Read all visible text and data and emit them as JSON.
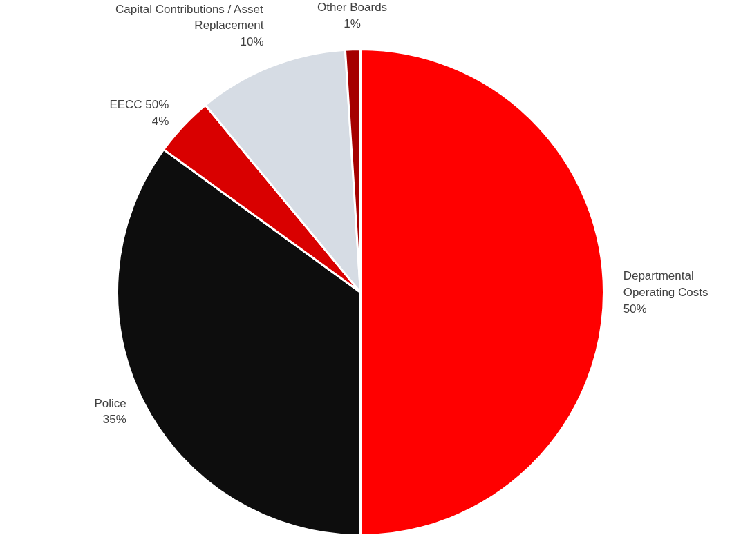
{
  "chart_data": {
    "type": "pie",
    "categories": [
      "Departmental Operating Costs",
      "Police",
      "EECC 50%",
      "Capital Contributions / Asset Replacement",
      "Other Boards"
    ],
    "values": [
      50,
      35,
      4,
      10,
      1
    ],
    "value_labels": [
      "50%",
      "35%",
      "4%",
      "10%",
      "1%"
    ],
    "colors": [
      "#ff0000",
      "#0d0d0d",
      "#d90000",
      "#d6dce4",
      "#a50000"
    ]
  }
}
